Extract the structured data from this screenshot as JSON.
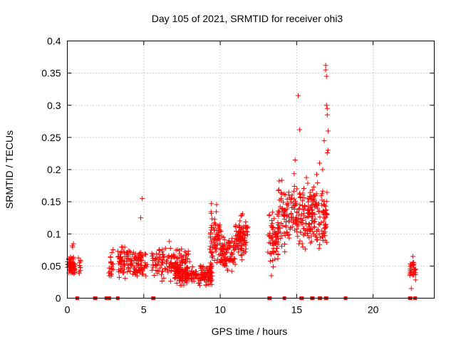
{
  "chart_data": {
    "type": "scatter",
    "title": "Day 105 of 2021, SRMTID for receiver ohi3",
    "xlabel": "GPS time / hours",
    "ylabel": "SRMTID / TECUs",
    "xlim": [
      0,
      24
    ],
    "ylim": [
      0,
      0.4
    ],
    "xticks": [
      0,
      5,
      10,
      15,
      20
    ],
    "yticks": [
      0,
      0.05,
      0.1,
      0.15,
      0.2,
      0.25,
      0.3,
      0.35,
      0.4
    ],
    "xtick_labels": [
      "0",
      "5",
      "10",
      "15",
      "20"
    ],
    "ytick_labels": [
      "0",
      "0.05",
      "0.1",
      "0.15",
      "0.2",
      "0.25",
      "0.3",
      "0.35",
      "0.4"
    ],
    "grid": true,
    "marker": "+",
    "color": "#ff0000",
    "series": [
      {
        "name": "SRMTID",
        "clusters": [
          {
            "x_range": [
              0.0,
              0.5
            ],
            "y_range": [
              0.03,
              0.07
            ],
            "n": 60
          },
          {
            "x_range": [
              0.3,
              0.5
            ],
            "y_range": [
              0.07,
              0.09
            ],
            "n": 3
          },
          {
            "x_range": [
              0.6,
              0.9
            ],
            "y_range": [
              0.03,
              0.07
            ],
            "n": 10
          },
          {
            "x_range": [
              2.7,
              3.0
            ],
            "y_range": [
              0.02,
              0.08
            ],
            "n": 20
          },
          {
            "x_range": [
              3.3,
              5.0
            ],
            "y_range": [
              0.02,
              0.09
            ],
            "n": 130
          },
          {
            "x_range": [
              5.0,
              5.3
            ],
            "y_range": [
              0.03,
              0.08
            ],
            "n": 10
          },
          {
            "x_range": [
              5.5,
              8.0
            ],
            "y_range": [
              0.02,
              0.09
            ],
            "n": 140
          },
          {
            "x_range": [
              7.0,
              9.5
            ],
            "y_range": [
              0.015,
              0.06
            ],
            "n": 200
          },
          {
            "x_range": [
              9.3,
              10.0
            ],
            "y_range": [
              0.04,
              0.16
            ],
            "n": 70
          },
          {
            "x_range": [
              10.0,
              11.0
            ],
            "y_range": [
              0.03,
              0.11
            ],
            "n": 90
          },
          {
            "x_range": [
              11.0,
              11.8
            ],
            "y_range": [
              0.05,
              0.14
            ],
            "n": 90
          },
          {
            "x_range": [
              13.1,
              13.8
            ],
            "y_range": [
              0.03,
              0.15
            ],
            "n": 70
          },
          {
            "x_range": [
              13.8,
              15.0
            ],
            "y_range": [
              0.06,
              0.2
            ],
            "n": 100
          },
          {
            "x_range": [
              15.0,
              16.0
            ],
            "y_range": [
              0.06,
              0.2
            ],
            "n": 100
          },
          {
            "x_range": [
              16.0,
              17.0
            ],
            "y_range": [
              0.06,
              0.2
            ],
            "n": 100
          },
          {
            "x_range": [
              22.4,
              22.8
            ],
            "y_range": [
              0.02,
              0.065
            ],
            "n": 30
          }
        ],
        "highlights": [
          {
            "x": 4.9,
            "y": 0.155
          },
          {
            "x": 4.8,
            "y": 0.125
          },
          {
            "x": 15.1,
            "y": 0.315
          },
          {
            "x": 15.2,
            "y": 0.262
          },
          {
            "x": 14.9,
            "y": 0.215
          },
          {
            "x": 16.9,
            "y": 0.362
          },
          {
            "x": 16.9,
            "y": 0.355
          },
          {
            "x": 16.95,
            "y": 0.345
          },
          {
            "x": 16.95,
            "y": 0.3
          },
          {
            "x": 17.0,
            "y": 0.295
          },
          {
            "x": 17.0,
            "y": 0.285
          },
          {
            "x": 17.05,
            "y": 0.26
          },
          {
            "x": 17.05,
            "y": 0.23
          },
          {
            "x": 17.0,
            "y": 0.226
          },
          {
            "x": 16.8,
            "y": 0.245
          },
          {
            "x": 16.5,
            "y": 0.21
          },
          {
            "x": 16.7,
            "y": 0.2
          },
          {
            "x": 22.5,
            "y": 0.015
          },
          {
            "x": 22.6,
            "y": 0.065
          }
        ],
        "baseline_x": [
          0.65,
          1.8,
          1.85,
          2.55,
          2.65,
          2.75,
          3.3,
          5.6,
          5.65,
          13.2,
          13.25,
          14.2,
          15.3,
          15.35,
          16.0,
          16.05,
          16.5,
          16.55,
          16.9,
          16.95,
          18.2,
          22.4,
          22.45,
          22.75
        ]
      }
    ]
  }
}
